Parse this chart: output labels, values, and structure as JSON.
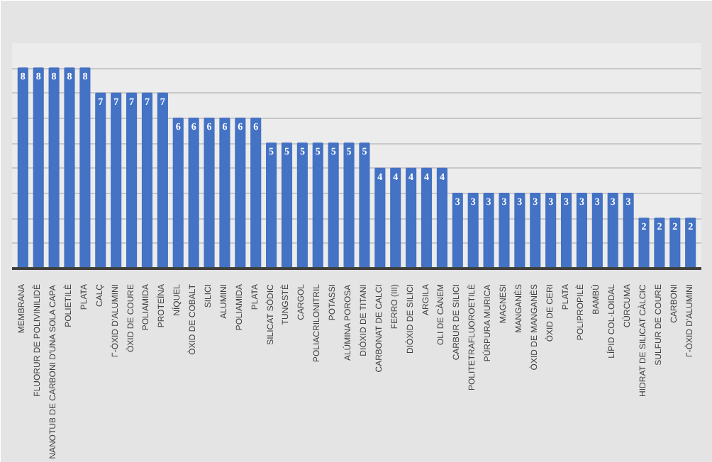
{
  "chart_data": {
    "type": "bar",
    "categories": [
      "MEMBRANA",
      "FLUORUR DE POLIVINILIDÈ",
      "NANOTUB DE CARBONI D'UNA SOLA CAPA",
      "POLIETILÈ",
      "PLATA",
      "CALÇ",
      "Γ-ÒXID D'ALUMINI",
      "ÒXID DE COURE",
      "POLIAMIDA",
      "PROTEÏNA",
      "NÍQUEL",
      "ÒXID DE COBALT",
      "SILICI",
      "ALUMINI",
      "POLIAMIDA",
      "PLATA",
      "SILICAT SÒDIC",
      "TUNGSTÈ",
      "CARGOL",
      "POLIACRILONITRIL",
      "POTASSI",
      "ALÚMINA POROSA",
      "DIÒXID DE TITANI",
      "CARBONAT DE CALCI",
      "FERRO (III)",
      "DIÒXID DE SILICI",
      "ARGILA",
      "OLI DE CÀNEM",
      "CARBUR DE SILICI",
      "POLITETRAFLUOROETILÈ",
      "PÚRPURA MURICA",
      "MAGNESI",
      "MANGANÈS",
      "ÒXID DE MANGANÈS",
      "ÒXID DE CERI",
      "PLATA",
      "POLIPROPILÈ",
      "BAMBÚ",
      "LÍPID COL·LOIDAL",
      "CÚRCUMA",
      "HIDRAT DE SILICAT CÀLCIC",
      "SULFUR DE COURE",
      "CARBONI",
      "Γ-ÒXID D'ALUMINI"
    ],
    "values": [
      8,
      8,
      8,
      8,
      8,
      7,
      7,
      7,
      7,
      7,
      6,
      6,
      6,
      6,
      6,
      6,
      5,
      5,
      5,
      5,
      5,
      5,
      5,
      4,
      4,
      4,
      4,
      4,
      3,
      3,
      3,
      3,
      3,
      3,
      3,
      3,
      3,
      3,
      3,
      3,
      2,
      2,
      2,
      2
    ],
    "color": "#4472c4",
    "ylim": [
      0,
      9
    ],
    "yticks": [
      {
        "value": 0,
        "label": null
      },
      {
        "value": 1,
        "label": null
      },
      {
        "value": 2,
        "label": null
      },
      {
        "value": 3,
        "label": null
      },
      {
        "value": 4,
        "label": null
      },
      {
        "value": 5,
        "label": null
      },
      {
        "value": 6,
        "label": null
      },
      {
        "value": 7,
        "label": null
      },
      {
        "value": 8,
        "label": null
      },
      {
        "value": 9,
        "label": null
      }
    ],
    "grid": "y",
    "tick_labels": "x",
    "data_labels": true
  }
}
